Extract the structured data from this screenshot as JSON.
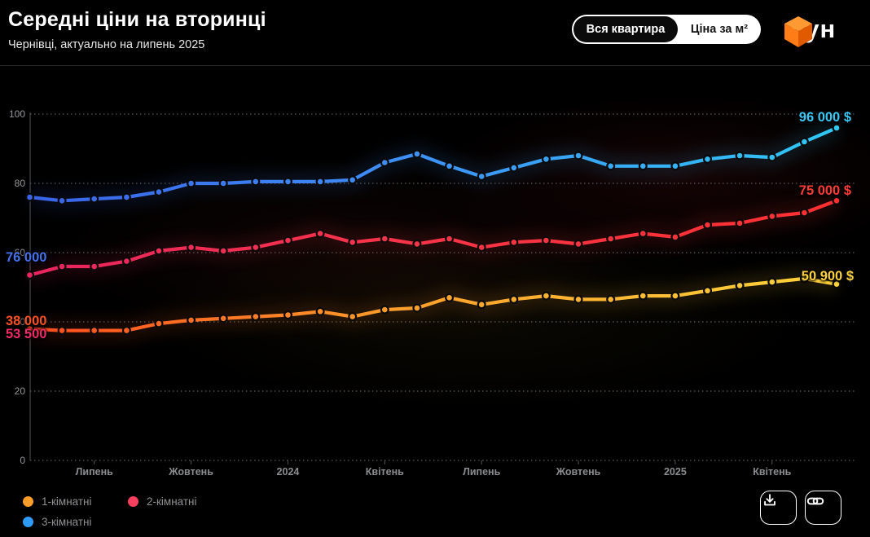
{
  "header": {
    "title": "Середні ціни на вторинці",
    "subtitle": "Чернівці, актуально на липень 2025",
    "toggle": {
      "options": [
        "Вся квартира",
        "Ціна за м²"
      ],
      "selected_index": 0
    },
    "logo": {
      "text": "лун",
      "cube_colors": {
        "top": "#FF9A33",
        "left": "#FF7C17",
        "right": "#E05A00"
      }
    }
  },
  "chart_data": {
    "type": "line",
    "title": "Середні ціни на вторинці",
    "subtitle": "Чернівці, актуально на липень 2025",
    "currency": "USD",
    "ylim": [
      0,
      100000
    ],
    "y_ticks": [
      0,
      20000,
      40000,
      60000,
      80000,
      100000
    ],
    "y_tick_labels": [
      "0",
      "20",
      "40",
      "60",
      "80",
      "100"
    ],
    "grid": "dotted horizontal gridlines, dotted baseline",
    "legend_position": "bottom-left",
    "x_ticks": [
      {
        "index": 2,
        "label": "Липень"
      },
      {
        "index": 5,
        "label": "Жовтень"
      },
      {
        "index": 8,
        "label": "2024"
      },
      {
        "index": 11,
        "label": "Квітень"
      },
      {
        "index": 14,
        "label": "Липень"
      },
      {
        "index": 17,
        "label": "Жовтень"
      },
      {
        "index": 20,
        "label": "2025"
      },
      {
        "index": 23,
        "label": "Квітень"
      }
    ],
    "series": [
      {
        "name": "1-кімнатні",
        "color_stops": [
          "#FF4A1E",
          "#FF9D2B",
          "#FFD43C"
        ],
        "start_label": "38 000",
        "start_label_color": "#FF5224",
        "end_label": "50 900 $",
        "end_label_color": "#FFD33C",
        "values": [
          38000,
          37500,
          37500,
          37500,
          39500,
          40500,
          41000,
          41500,
          42000,
          43000,
          41500,
          43500,
          44000,
          47000,
          45000,
          46500,
          47500,
          46500,
          46500,
          47500,
          47500,
          49000,
          50500,
          51500,
          52500,
          50900
        ]
      },
      {
        "name": "2-кімнатні",
        "color_stops": [
          "#E8255E",
          "#F8344A",
          "#FF3030"
        ],
        "start_label": "53 500",
        "start_label_color": "#F22A66",
        "end_label": "75 000 $",
        "end_label_color": "#FF3B38",
        "values": [
          53500,
          56000,
          56000,
          57500,
          60500,
          61500,
          60500,
          61500,
          63500,
          65500,
          63000,
          64000,
          62500,
          64000,
          61500,
          63000,
          63500,
          62500,
          64000,
          65500,
          64500,
          68000,
          68500,
          70500,
          71500,
          75000
        ]
      },
      {
        "name": "3-кімнатні",
        "color_stops": [
          "#3A63E8",
          "#3E8EF7",
          "#30C8F6"
        ],
        "start_label": "76 000",
        "start_label_color": "#4671EE",
        "end_label": "96 000 $",
        "end_label_color": "#38C9F6",
        "values": [
          76000,
          75000,
          75500,
          76000,
          77500,
          80000,
          80000,
          80500,
          80500,
          80500,
          81000,
          86000,
          88500,
          85000,
          82000,
          84500,
          87000,
          88000,
          85000,
          85000,
          85000,
          87000,
          88000,
          87500,
          92000,
          96000
        ]
      }
    ]
  },
  "legend": {
    "items": [
      {
        "label": "1-кімнатні",
        "color": "#FF9D2B"
      },
      {
        "label": "2-кімнатні",
        "color": "#F43F5E"
      },
      {
        "label": "3-кімнатні",
        "color": "#2E9BF6"
      }
    ]
  },
  "footer_actions": [
    {
      "icon": "download-icon"
    },
    {
      "icon": "link-icon"
    }
  ]
}
